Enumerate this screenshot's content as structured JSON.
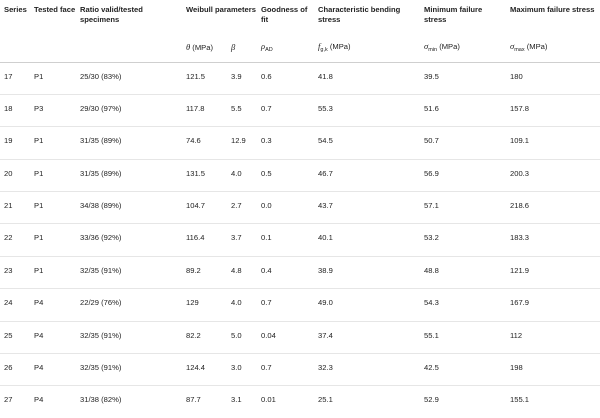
{
  "headers": {
    "series": "Series",
    "tested_face": "Tested face",
    "ratio": "Ratio valid/tested specimens",
    "weibull": "Weibull parameters",
    "goodness": "Goodness of fit",
    "char_bending": "Characteristic bending stress",
    "min_failure": "Minimum failure stress",
    "max_failure": "Maximum failure stress"
  },
  "subheaders": {
    "theta_sym": "θ",
    "theta_unit": " (MPa)",
    "beta_sym": "β",
    "rho_sym": "ρ",
    "rho_sub": "AD",
    "f_sym": "f",
    "f_sub": "g,k",
    "f_unit": " (MPa)",
    "smin_sym": "σ",
    "smin_sub": "min",
    "smin_unit": " (MPa)",
    "smax_sym": "σ",
    "smax_sub": "max",
    "smax_unit": " (MPa)"
  },
  "rows": [
    {
      "series": "17",
      "face": "P1",
      "ratio": "25/30 (83%)",
      "theta": "121.5",
      "beta": "3.9",
      "rho": "0.6",
      "fgk": "41.8",
      "smin": "39.5",
      "smax": "180"
    },
    {
      "series": "18",
      "face": "P3",
      "ratio": "29/30 (97%)",
      "theta": "117.8",
      "beta": "5.5",
      "rho": "0.7",
      "fgk": "55.3",
      "smin": "51.6",
      "smax": "157.8"
    },
    {
      "series": "19",
      "face": "P1",
      "ratio": "31/35 (89%)",
      "theta": "74.6",
      "beta": "12.9",
      "rho": "0.3",
      "fgk": "54.5",
      "smin": "50.7",
      "smax": "109.1"
    },
    {
      "series": "20",
      "face": "P1",
      "ratio": "31/35 (89%)",
      "theta": "131.5",
      "beta": "4.0",
      "rho": "0.5",
      "fgk": "46.7",
      "smin": "56.9",
      "smax": "200.3"
    },
    {
      "series": "21",
      "face": "P1",
      "ratio": "34/38 (89%)",
      "theta": "104.7",
      "beta": "2.7",
      "rho": "0.0",
      "fgk": "43.7",
      "smin": "57.1",
      "smax": "218.6"
    },
    {
      "series": "22",
      "face": "P1",
      "ratio": "33/36 (92%)",
      "theta": "116.4",
      "beta": "3.7",
      "rho": "0.1",
      "fgk": "40.1",
      "smin": "53.2",
      "smax": "183.3"
    },
    {
      "series": "23",
      "face": "P1",
      "ratio": "32/35 (91%)",
      "theta": "89.2",
      "beta": "4.8",
      "rho": "0.4",
      "fgk": "38.9",
      "smin": "48.8",
      "smax": "121.9"
    },
    {
      "series": "24",
      "face": "P4",
      "ratio": "22/29 (76%)",
      "theta": "129",
      "beta": "4.0",
      "rho": "0.7",
      "fgk": "49.0",
      "smin": "54.3",
      "smax": "167.9"
    },
    {
      "series": "25",
      "face": "P4",
      "ratio": "32/35 (91%)",
      "theta": "82.2",
      "beta": "5.0",
      "rho": "0.04",
      "fgk": "37.4",
      "smin": "55.1",
      "smax": "112"
    },
    {
      "series": "26",
      "face": "P4",
      "ratio": "32/35 (91%)",
      "theta": "124.4",
      "beta": "3.0",
      "rho": "0.7",
      "fgk": "32.3",
      "smin": "42.5",
      "smax": "198"
    },
    {
      "series": "27",
      "face": "P4",
      "ratio": "31/38 (82%)",
      "theta": "87.7",
      "beta": "3.1",
      "rho": "0.01",
      "fgk": "25.1",
      "smin": "52.9",
      "smax": "155.1"
    }
  ]
}
